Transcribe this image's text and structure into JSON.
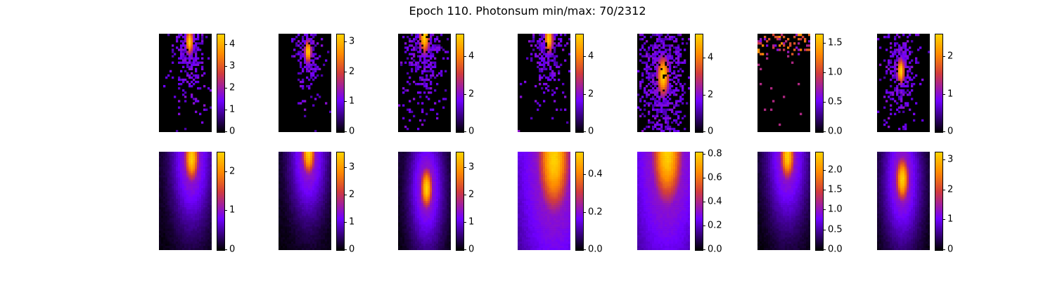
{
  "figure": {
    "title": "Epoch 110. Photonsum min/max: 70/2312"
  },
  "colormap": {
    "name": "gnuplot",
    "stops": [
      "#000000",
      "#7000ff",
      "#d13c3c",
      "#ff8a00",
      "#ffd200"
    ]
  },
  "chart_data": [
    {
      "type": "heatmap",
      "row": 1,
      "col": 1,
      "label": "top-left",
      "peak": {
        "col": 0.56,
        "row": 0.07,
        "spread": 0.09,
        "scatter": "sparse-wide"
      },
      "colorbar": {
        "range": [
          0,
          4.5
        ],
        "ticks": [
          "0",
          "1",
          "2",
          "3",
          "4"
        ],
        "tick_values": [
          0,
          1,
          2,
          3,
          4
        ]
      }
    },
    {
      "type": "heatmap",
      "row": 1,
      "col": 2,
      "label": "top-2",
      "peak": {
        "col": 0.54,
        "row": 0.17,
        "spread": 0.08,
        "scatter": "sparse-narrow"
      },
      "colorbar": {
        "range": [
          0,
          3.25
        ],
        "ticks": [
          "0",
          "1",
          "2",
          "3"
        ],
        "tick_values": [
          0,
          1,
          2,
          3
        ]
      }
    },
    {
      "type": "heatmap",
      "row": 1,
      "col": 3,
      "label": "top-3",
      "peak": {
        "col": 0.48,
        "row": 0.02,
        "spread": 0.12,
        "scatter": "sparse-wide"
      },
      "colorbar": {
        "range": [
          0,
          5.2
        ],
        "ticks": [
          "0",
          "2",
          "4"
        ],
        "tick_values": [
          0,
          2,
          4
        ]
      }
    },
    {
      "type": "heatmap",
      "row": 1,
      "col": 4,
      "label": "top-4",
      "peak": {
        "col": 0.57,
        "row": 0.04,
        "spread": 0.1,
        "scatter": "sparse-wide"
      },
      "colorbar": {
        "range": [
          0,
          5.2
        ],
        "ticks": [
          "0",
          "2",
          "4"
        ],
        "tick_values": [
          0,
          2,
          4
        ]
      }
    },
    {
      "type": "heatmap",
      "row": 1,
      "col": 5,
      "label": "top-5",
      "peak": {
        "col": 0.47,
        "row": 0.42,
        "spread": 0.14,
        "scatter": "sparse-wide"
      },
      "colorbar": {
        "range": [
          0,
          5.3
        ],
        "ticks": [
          "0",
          "2",
          "4"
        ],
        "tick_values": [
          0,
          2,
          4
        ]
      }
    },
    {
      "type": "heatmap",
      "row": 1,
      "col": 6,
      "label": "top-6",
      "peak": {
        "col": 0.5,
        "row": 0.0,
        "spread": 0.25,
        "scatter": "sparse-top"
      },
      "colorbar": {
        "range": [
          0,
          1.65
        ],
        "ticks": [
          "0.0",
          "0.5",
          "1.0",
          "1.5"
        ],
        "tick_values": [
          0,
          0.5,
          1.0,
          1.5
        ]
      }
    },
    {
      "type": "heatmap",
      "row": 1,
      "col": 7,
      "label": "top-7",
      "peak": {
        "col": 0.43,
        "row": 0.37,
        "spread": 0.09,
        "scatter": "sparse-narrow"
      },
      "colorbar": {
        "range": [
          0,
          2.6
        ],
        "ticks": [
          "0",
          "1",
          "2"
        ],
        "tick_values": [
          0,
          1,
          2
        ]
      }
    },
    {
      "type": "heatmap",
      "row": 2,
      "col": 1,
      "label": "bottom-1",
      "peak": {
        "col": 0.6,
        "row": 0.05,
        "spread": 0.14,
        "scatter": "smooth"
      },
      "colorbar": {
        "range": [
          0,
          2.5
        ],
        "ticks": [
          "0",
          "1",
          "2"
        ],
        "tick_values": [
          0,
          1,
          2
        ]
      }
    },
    {
      "type": "heatmap",
      "row": 2,
      "col": 2,
      "label": "bottom-2",
      "peak": {
        "col": 0.55,
        "row": 0.0,
        "spread": 0.13,
        "scatter": "smooth"
      },
      "colorbar": {
        "range": [
          0,
          3.55
        ],
        "ticks": [
          "0",
          "1",
          "2",
          "3"
        ],
        "tick_values": [
          0,
          1,
          2,
          3
        ]
      }
    },
    {
      "type": "heatmap",
      "row": 2,
      "col": 3,
      "label": "bottom-3",
      "peak": {
        "col": 0.52,
        "row": 0.36,
        "spread": 0.12,
        "scatter": "smooth"
      },
      "colorbar": {
        "range": [
          0,
          3.55
        ],
        "ticks": [
          "0",
          "1",
          "2",
          "3"
        ],
        "tick_values": [
          0,
          1,
          2,
          3
        ]
      }
    },
    {
      "type": "heatmap",
      "row": 2,
      "col": 4,
      "label": "bottom-4",
      "peak": {
        "col": 0.67,
        "row": 0.05,
        "spread": 0.32,
        "scatter": "smooth-wide"
      },
      "colorbar": {
        "range": [
          0,
          0.52
        ],
        "ticks": [
          "0.0",
          "0.2",
          "0.4"
        ],
        "tick_values": [
          0,
          0.2,
          0.4
        ]
      }
    },
    {
      "type": "heatmap",
      "row": 2,
      "col": 5,
      "label": "bottom-5",
      "peak": {
        "col": 0.55,
        "row": 0.0,
        "spread": 0.3,
        "scatter": "smooth-wide"
      },
      "colorbar": {
        "range": [
          0,
          0.82
        ],
        "ticks": [
          "0.0",
          "0.2",
          "0.4",
          "0.6",
          "0.8"
        ],
        "tick_values": [
          0,
          0.2,
          0.4,
          0.6,
          0.8
        ]
      }
    },
    {
      "type": "heatmap",
      "row": 2,
      "col": 6,
      "label": "bottom-6",
      "peak": {
        "col": 0.55,
        "row": 0.03,
        "spread": 0.14,
        "scatter": "smooth"
      },
      "colorbar": {
        "range": [
          0,
          2.45
        ],
        "ticks": [
          "0.0",
          "0.5",
          "1.0",
          "1.5",
          "2.0"
        ],
        "tick_values": [
          0,
          0.5,
          1.0,
          1.5,
          2.0
        ]
      }
    },
    {
      "type": "heatmap",
      "row": 2,
      "col": 7,
      "label": "bottom-7",
      "peak": {
        "col": 0.46,
        "row": 0.27,
        "spread": 0.13,
        "scatter": "smooth"
      },
      "colorbar": {
        "range": [
          0,
          3.25
        ],
        "ticks": [
          "0",
          "1",
          "2",
          "3"
        ],
        "tick_values": [
          0,
          1,
          2,
          3
        ]
      }
    }
  ]
}
